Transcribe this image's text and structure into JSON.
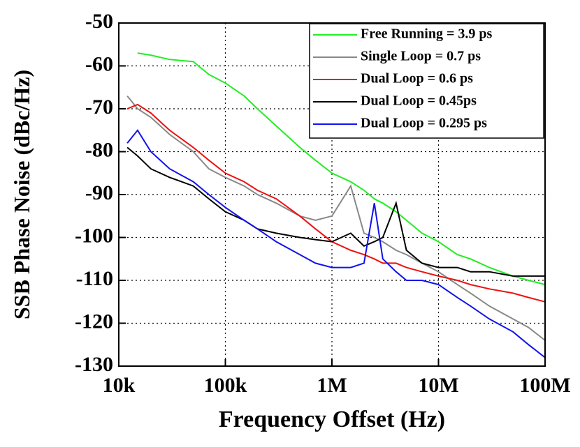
{
  "chart_data": {
    "type": "line",
    "x_label": "Frequency Offset (Hz)",
    "y_label": "SSB Phase Noise (dBc/Hz)",
    "x": [
      12000,
      15000,
      20000,
      30000,
      50000,
      70000,
      100000,
      150000,
      200000,
      300000,
      500000,
      700000,
      1000000,
      1500000,
      2000000,
      2500000,
      3000000,
      4000000,
      5000000,
      7000000,
      10000000,
      15000000,
      20000000,
      30000000,
      50000000,
      70000000,
      100000000
    ],
    "xlog": true,
    "xlim": [
      10000,
      100000000
    ],
    "xticks": [
      {
        "value": 10000,
        "label": "10k"
      },
      {
        "value": 100000,
        "label": "100k"
      },
      {
        "value": 1000000,
        "label": "1M"
      },
      {
        "value": 10000000,
        "label": "10M"
      },
      {
        "value": 100000000,
        "label": "100M"
      }
    ],
    "ylim": [
      -130,
      -50
    ],
    "yticks": [
      -130,
      -120,
      -110,
      -100,
      -90,
      -80,
      -70,
      -60,
      -50
    ],
    "grid": true,
    "legend": "top-right",
    "series": [
      {
        "name": "Free Running = 3.9 ps",
        "color": "#22ee22",
        "values": [
          null,
          -57,
          -57.5,
          -58.5,
          -59,
          -62,
          -64,
          -67,
          -70,
          -74,
          -79,
          -82,
          -85,
          -87,
          -89,
          -91,
          -92,
          -94,
          -96,
          -99,
          -101,
          -104,
          -105,
          -107,
          -109,
          -110,
          -111
        ]
      },
      {
        "name": "Single Loop = 0.7 ps",
        "color": "#888888",
        "values": [
          -67,
          -70,
          -72,
          -76,
          -80,
          -84,
          -86,
          -88,
          -90,
          -92,
          -95,
          -96,
          -95,
          -88,
          -99,
          -100,
          -101,
          -103,
          -104,
          -106,
          -108,
          -111,
          -113,
          -116,
          -119,
          -121,
          -124
        ]
      },
      {
        "name": "Dual Loop = 0.6 ps",
        "color": "#ee1111",
        "values": [
          -70,
          -69,
          -71,
          -75,
          -79,
          -82,
          -85,
          -87,
          -89,
          -91,
          -95,
          -98,
          -101,
          -103,
          -104,
          -105,
          -106,
          -106,
          -107,
          -108,
          -109,
          -110,
          -111,
          -112,
          -113,
          -114,
          -115
        ]
      },
      {
        "name": "Dual Loop = 0.45ps",
        "color": "#000000",
        "values": [
          -79,
          -81,
          -84,
          -86,
          -88,
          -91,
          -94,
          -96,
          -98,
          -99,
          -100,
          -100.5,
          -101,
          -99,
          -102,
          -101,
          -100,
          -92,
          -103,
          -106,
          -107,
          -107,
          -108,
          -108,
          -109,
          -109,
          -109
        ]
      },
      {
        "name": "Dual Loop = 0.295 ps",
        "color": "#1111ee",
        "values": [
          -78,
          -75,
          -80,
          -84,
          -87,
          -90,
          -93,
          -96,
          -98,
          -101,
          -104,
          -106,
          -107,
          -107,
          -106,
          -92,
          -105,
          -108,
          -110,
          -110,
          -111,
          -114,
          -116,
          -119,
          -122,
          -125,
          -128
        ]
      }
    ]
  }
}
